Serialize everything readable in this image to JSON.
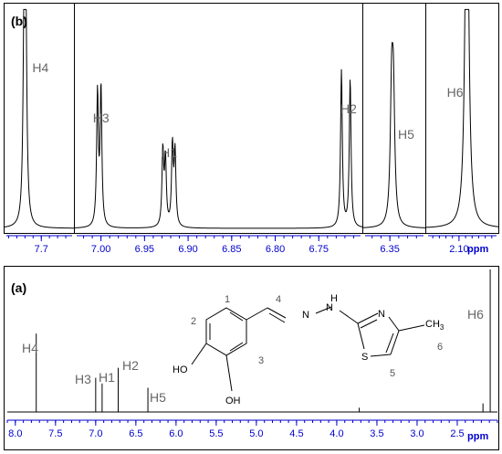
{
  "panel_labels": {
    "b": "(b)",
    "a": "(a)"
  },
  "unit": "ppm",
  "chart_data": [
    {
      "panel": "(b)",
      "type": "line",
      "title": "",
      "xlabel": "ppm",
      "x_direction": "reversed",
      "grid": false,
      "subpanels": [
        {
          "name": "H4 region",
          "xlim": [
            7.79,
            7.62
          ],
          "ticks": [
            {
              "v": 7.7,
              "label": "7.7"
            }
          ],
          "minor_step": 0.02,
          "peaks": [
            {
              "label": "H4",
              "center": 7.74,
              "shifts": [
                7.742,
                7.738
              ],
              "heights": [
                0.9,
                0.88
              ],
              "width": 0.003
            }
          ]
        },
        {
          "name": "H1/H2/H3 region",
          "xlim": [
            7.03,
            6.7
          ],
          "ticks": [
            {
              "v": 7.0,
              "label": "7.00"
            },
            {
              "v": 6.95,
              "label": "6.95"
            },
            {
              "v": 6.9,
              "label": "6.90"
            },
            {
              "v": 6.85,
              "label": "6.85"
            },
            {
              "v": 6.8,
              "label": "6.80"
            },
            {
              "v": 6.75,
              "label": "6.75"
            }
          ],
          "minor_step": 0.01,
          "peaks": [
            {
              "label": "H3",
              "center": 7.002,
              "shifts": [
                7.004,
                7.0
              ],
              "heights": [
                0.6,
                0.62
              ],
              "width": 0.0012
            },
            {
              "label": "H1",
              "center": 6.922,
              "shifts": [
                6.929,
                6.926,
                6.918,
                6.915
              ],
              "heights": [
                0.34,
                0.3,
                0.36,
                0.33
              ],
              "width": 0.0012
            },
            {
              "label": "H2",
              "center": 6.72,
              "shifts": [
                6.724,
                6.714
              ],
              "heights": [
                0.71,
                0.67
              ],
              "width": 0.0012
            }
          ]
        },
        {
          "name": "H5 region",
          "xlim": [
            6.38,
            6.31
          ],
          "ticks": [
            {
              "v": 6.35,
              "label": "6.35"
            }
          ],
          "minor_step": 0.01,
          "peaks": [
            {
              "label": "H5",
              "center": 6.347,
              "shifts": [
                6.348,
                6.346
              ],
              "heights": [
                0.56,
                0.54
              ],
              "width": 0.0018
            }
          ]
        },
        {
          "name": "H6 region",
          "xlim": [
            2.15,
            2.04
          ],
          "ticks": [
            {
              "v": 2.1,
              "label": "2.10"
            }
          ],
          "minor_step": 0.01,
          "peaks": [
            {
              "label": "H6",
              "center": 2.088,
              "shifts": [
                2.089,
                2.087
              ],
              "heights": [
                0.96,
                0.95
              ],
              "width": 0.003
            }
          ]
        }
      ]
    },
    {
      "panel": "(a)",
      "type": "line",
      "title": "",
      "xlabel": "ppm",
      "x_direction": "reversed",
      "xlim": [
        8.1,
        2.0
      ],
      "grid": false,
      "ticks": [
        {
          "v": 8.0,
          "label": "8.0"
        },
        {
          "v": 7.5,
          "label": "7.5"
        },
        {
          "v": 7.0,
          "label": "7.0"
        },
        {
          "v": 6.5,
          "label": "6.5"
        },
        {
          "v": 6.0,
          "label": "6.0"
        },
        {
          "v": 5.5,
          "label": "5.5"
        },
        {
          "v": 5.0,
          "label": "5.0"
        },
        {
          "v": 4.5,
          "label": "4.5"
        },
        {
          "v": 4.0,
          "label": "4.0"
        },
        {
          "v": 3.5,
          "label": "3.5"
        },
        {
          "v": 3.0,
          "label": "3.0"
        },
        {
          "v": 2.5,
          "label": "2.5"
        }
      ],
      "minor_step": 0.1,
      "peaks": [
        {
          "label": "H4",
          "shift": 7.74,
          "height": 0.55
        },
        {
          "label": "H3",
          "shift": 7.0,
          "height": 0.24
        },
        {
          "label": "H1",
          "shift": 6.92,
          "height": 0.2
        },
        {
          "label": "H2",
          "shift": 6.72,
          "height": 0.31
        },
        {
          "label": "H5",
          "shift": 6.35,
          "height": 0.17
        },
        {
          "label": "",
          "shift": 3.72,
          "height": 0.03
        },
        {
          "label": "",
          "shift": 2.18,
          "height": 0.06
        },
        {
          "label": "H6",
          "shift": 2.09,
          "height": 1.0
        }
      ]
    }
  ],
  "molecule": {
    "atoms": {
      "oh_top": "HO",
      "oh_bottom": "OH",
      "n1": "N",
      "n2": "N",
      "nh": "H",
      "n3": "N",
      "s": "S",
      "methyl": "CH",
      "methyl_sub": "3"
    },
    "numbers": {
      "n1": "1",
      "n2": "2",
      "n3": "3",
      "n4": "4",
      "n5": "5",
      "n6": "6"
    }
  }
}
